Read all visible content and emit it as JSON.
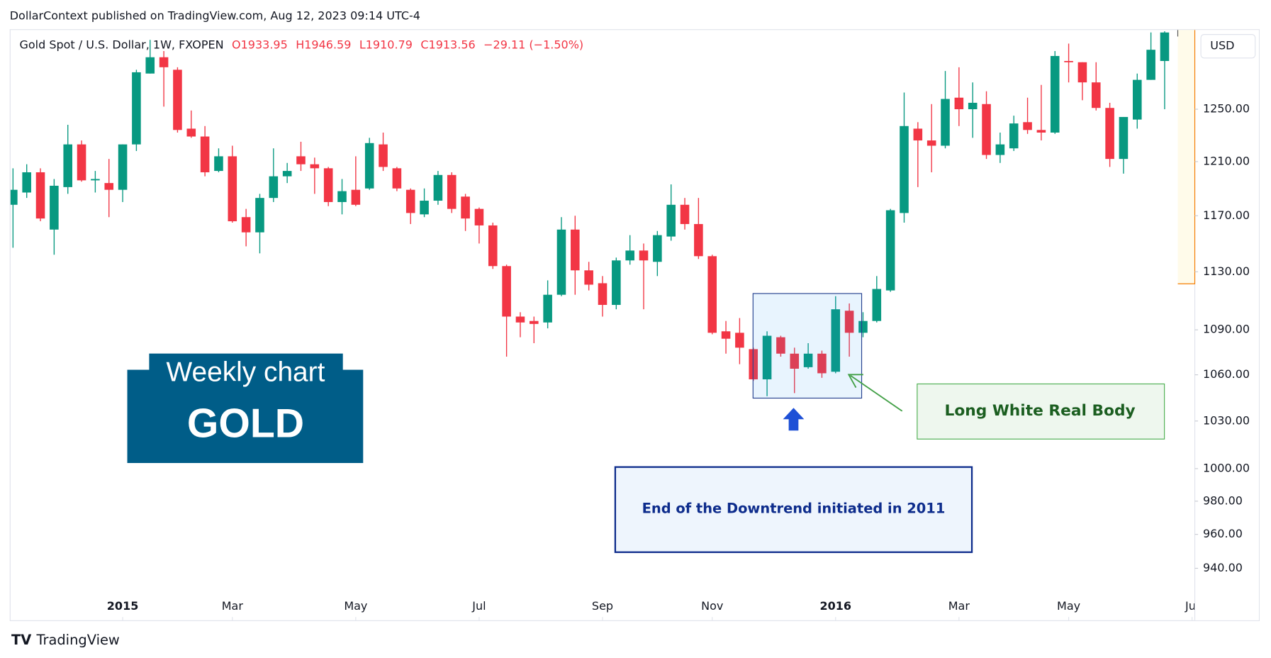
{
  "chart_data": {
    "type": "candlestick",
    "published": "DollarContext published on TradingView.com, Aug 12, 2023 09:14 UTC-4",
    "title": "Gold Spot / U.S. Dollar, 1W, FXOPEN",
    "legend_values": [
      "O1933.95",
      "H1946.59",
      "L1910.79",
      "C1913.56",
      "−29.11 (−1.50%)"
    ],
    "currency": "USD",
    "brand": "TradingView",
    "annotations": [
      "Weekly chart",
      "GOLD",
      "Long White Real Body",
      "End of the Downtrend initiated in 2011"
    ],
    "up_color": "#089981",
    "down_color": "#f23645",
    "log_scale": true,
    "grid": false,
    "open": [
      1178,
      1187,
      1202,
      1160,
      1191,
      1223,
      1196,
      1194,
      1189,
      1223,
      1278,
      1291,
      1281,
      1235,
      1229,
      1203,
      1214,
      1169,
      1158,
      1183,
      1199,
      1214,
      1208,
      1205,
      1180,
      1189,
      1190,
      1223,
      1205,
      1189,
      1171,
      1181,
      1200,
      1184,
      1175,
      1163,
      1134,
      1099,
      1096,
      1095,
      1114,
      1160,
      1131,
      1122,
      1107,
      1138,
      1145,
      1137,
      1155,
      1178,
      1164,
      1141,
      1089,
      1088,
      1077,
      1057,
      1085,
      1074,
      1065,
      1074,
      1062,
      1103,
      1088,
      1096,
      1117,
      1172,
      1235,
      1226,
      1222,
      1259,
      1250,
      1254,
      1215,
      1220,
      1240,
      1234,
      1232,
      1288,
      1287,
      1271,
      1251,
      1212,
      1242,
      1273,
      1288
    ],
    "high": [
      1205,
      1208,
      1205,
      1197,
      1238,
      1226,
      1203,
      1212,
      1223,
      1281,
      1305,
      1296,
      1283,
      1249,
      1237,
      1220,
      1222,
      1175,
      1186,
      1220,
      1209,
      1225,
      1213,
      1206,
      1197,
      1214,
      1228,
      1232,
      1206,
      1190,
      1190,
      1203,
      1202,
      1186,
      1176,
      1165,
      1135,
      1102,
      1099,
      1124,
      1169,
      1170,
      1137,
      1127,
      1140,
      1156,
      1150,
      1159,
      1193,
      1183,
      1183,
      1142,
      1096,
      1098,
      1078,
      1089,
      1086,
      1078,
      1081,
      1076,
      1113,
      1108,
      1102,
      1127,
      1175,
      1263,
      1240,
      1254,
      1280,
      1283,
      1271,
      1264,
      1232,
      1245,
      1259,
      1269,
      1296,
      1302,
      1287,
      1287,
      1255,
      1244,
      1278,
      1311,
      1312
    ],
    "low": [
      1147,
      1183,
      1166,
      1142,
      1186,
      1195,
      1187,
      1169,
      1180,
      1218,
      1278,
      1252,
      1232,
      1228,
      1199,
      1202,
      1165,
      1148,
      1143,
      1180,
      1194,
      1203,
      1186,
      1177,
      1171,
      1177,
      1189,
      1203,
      1188,
      1164,
      1169,
      1178,
      1172,
      1159,
      1150,
      1132,
      1072,
      1085,
      1081,
      1091,
      1113,
      1114,
      1117,
      1099,
      1104,
      1135,
      1104,
      1127,
      1152,
      1160,
      1139,
      1087,
      1074,
      1067,
      1056,
      1046,
      1072,
      1048,
      1064,
      1058,
      1061,
      1072,
      1085,
      1095,
      1116,
      1165,
      1191,
      1202,
      1220,
      1237,
      1228,
      1212,
      1209,
      1218,
      1231,
      1226,
      1231,
      1271,
      1257,
      1249,
      1206,
      1201,
      1235,
      1273,
      1250
    ],
    "close": [
      1189,
      1202,
      1168,
      1192,
      1223,
      1196,
      1197,
      1189,
      1223,
      1279,
      1291,
      1283,
      1234,
      1229,
      1202,
      1214,
      1166,
      1158,
      1183,
      1199,
      1203,
      1208,
      1205,
      1180,
      1188,
      1178,
      1224,
      1206,
      1190,
      1172,
      1181,
      1200,
      1175,
      1168,
      1163,
      1134,
      1099,
      1095,
      1094,
      1114,
      1160,
      1131,
      1121,
      1107,
      1138,
      1145,
      1138,
      1156,
      1178,
      1164,
      1141,
      1088,
      1084,
      1078,
      1057,
      1086,
      1074,
      1064,
      1074,
      1061,
      1104,
      1088,
      1096,
      1118,
      1174,
      1237,
      1226,
      1222,
      1258,
      1250,
      1255,
      1215,
      1223,
      1239,
      1234,
      1232,
      1292,
      1287,
      1271,
      1251,
      1212,
      1244,
      1273,
      1297,
      1311
    ],
    "xlim": [
      -0.18,
      86.2
    ],
    "xticks": [
      {
        "value": 8,
        "label": "2015"
      },
      {
        "value": 16,
        "label": "Mar"
      },
      {
        "value": 25,
        "label": "May"
      },
      {
        "value": 34,
        "label": "Jul"
      },
      {
        "value": 43,
        "label": "Sep"
      },
      {
        "value": 51,
        "label": "Nov"
      },
      {
        "value": 60,
        "label": "2016"
      },
      {
        "value": 69,
        "label": "Mar"
      },
      {
        "value": 77,
        "label": "May"
      },
      {
        "value": 86,
        "label": "Jul"
      }
    ],
    "ylim": [
      924,
      1313
    ],
    "yticks": [
      {
        "value": 940,
        "label": "940.00"
      },
      {
        "value": 960,
        "label": "960.00"
      },
      {
        "value": 980,
        "label": "980.00"
      },
      {
        "value": 1000,
        "label": "1000.00"
      },
      {
        "value": 1030,
        "label": "1030.00"
      },
      {
        "value": 1060,
        "label": "1060.00"
      },
      {
        "value": 1090,
        "label": "1090.00"
      },
      {
        "value": 1130,
        "label": "1130.00"
      },
      {
        "value": 1170,
        "label": "1170.00"
      },
      {
        "value": 1210,
        "label": "1210.00"
      },
      {
        "value": 1250,
        "label": "1250.00"
      }
    ]
  }
}
